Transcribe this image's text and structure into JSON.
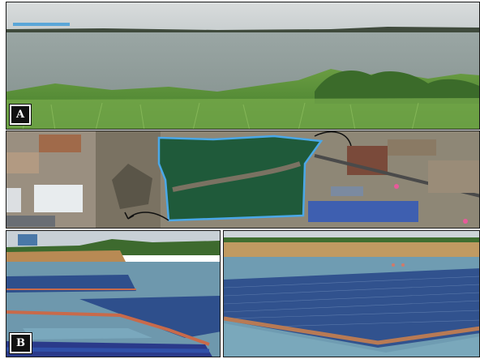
{
  "figure": {
    "panel_labels": {
      "a": "A",
      "b": "B"
    }
  },
  "colors": {
    "lake_water": "#8f9b98",
    "grass": "#4f8a34",
    "pond_green": "#1f5a3a",
    "map_ground": "#8e8776",
    "pond_outline": "#4aa8e8",
    "solar_panel": "#2e4f8c",
    "float_pontoon": "#c86a4a",
    "reservoir_water": "#6e98ad"
  }
}
